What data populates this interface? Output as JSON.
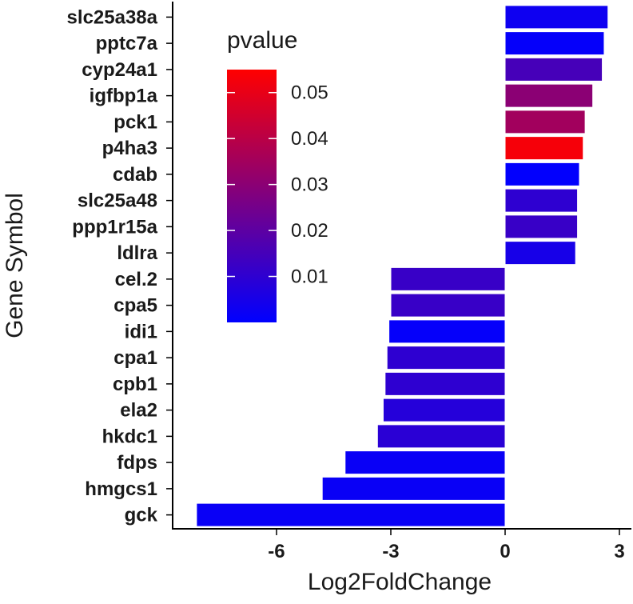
{
  "chart_data": {
    "type": "bar",
    "orientation": "horizontal",
    "title": "",
    "xlabel": "Log2FoldChange",
    "ylabel": "Gene Symbol",
    "xlim": [
      -8.4,
      3.4
    ],
    "xticks": [
      -6,
      -3,
      0,
      3
    ],
    "xtick_labels": [
      "-6",
      "-3",
      "0",
      "3"
    ],
    "categories": [
      "slc25a38a",
      "pptc7a",
      "cyp24a1",
      "igfbp1a",
      "pck1",
      "p4ha3",
      "cdab",
      "slc25a48",
      "ppp1r15a",
      "ldlra",
      "cel.2",
      "cpa5",
      "idi1",
      "cpa1",
      "cpb1",
      "ela2",
      "hkdc1",
      "fdps",
      "hmgcs1",
      "gck"
    ],
    "values": [
      2.7,
      2.6,
      2.55,
      2.3,
      2.1,
      2.05,
      1.95,
      1.9,
      1.9,
      1.85,
      -3.0,
      -3.0,
      -3.05,
      -3.1,
      -3.15,
      -3.2,
      -3.35,
      -4.2,
      -4.8,
      -8.1
    ],
    "pvalues": [
      0.003,
      0.001,
      0.015,
      0.03,
      0.035,
      0.053,
      0.0005,
      0.01,
      0.012,
      0.005,
      0.012,
      0.012,
      0.001,
      0.01,
      0.01,
      0.008,
      0.009,
      0.002,
      0.002,
      0.002
    ],
    "legend": {
      "title": "pvalue",
      "placement": "top-left inside",
      "range": [
        0.0,
        0.055
      ],
      "ticks": [
        0.05,
        0.04,
        0.03,
        0.02,
        0.01
      ],
      "tick_labels": [
        "0.05",
        "0.04",
        "0.03",
        "0.02",
        "0.01"
      ],
      "low_color": "#0000ff",
      "high_color": "#ff0000"
    },
    "grid": false
  }
}
